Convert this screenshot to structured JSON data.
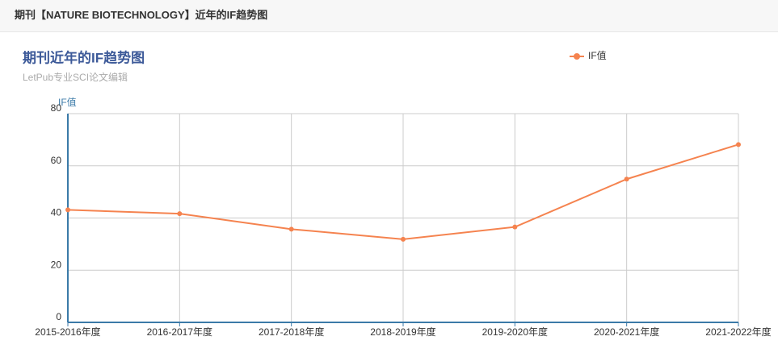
{
  "header": {
    "title": "期刊【NATURE BIOTECHNOLOGY】近年的IF趋势图"
  },
  "chart_data": {
    "type": "line",
    "title": "期刊近年的IF趋势图",
    "subtitle": "LetPub专业SCI论文编辑",
    "y_label": "IF值",
    "categories": [
      "2015-2016年度",
      "2016-2017年度",
      "2017-2018年度",
      "2018-2019年度",
      "2019-2020年度",
      "2020-2021年度",
      "2021-2022年度"
    ],
    "series": [
      {
        "name": "IF值",
        "color": "#f5834f",
        "values": [
          43.113,
          41.667,
          35.724,
          31.864,
          36.558,
          54.908,
          68.164
        ]
      }
    ],
    "ylim": [
      0,
      80
    ],
    "yticks": [
      0,
      20,
      40,
      60,
      80
    ],
    "grid": true,
    "legend": "top-right"
  }
}
